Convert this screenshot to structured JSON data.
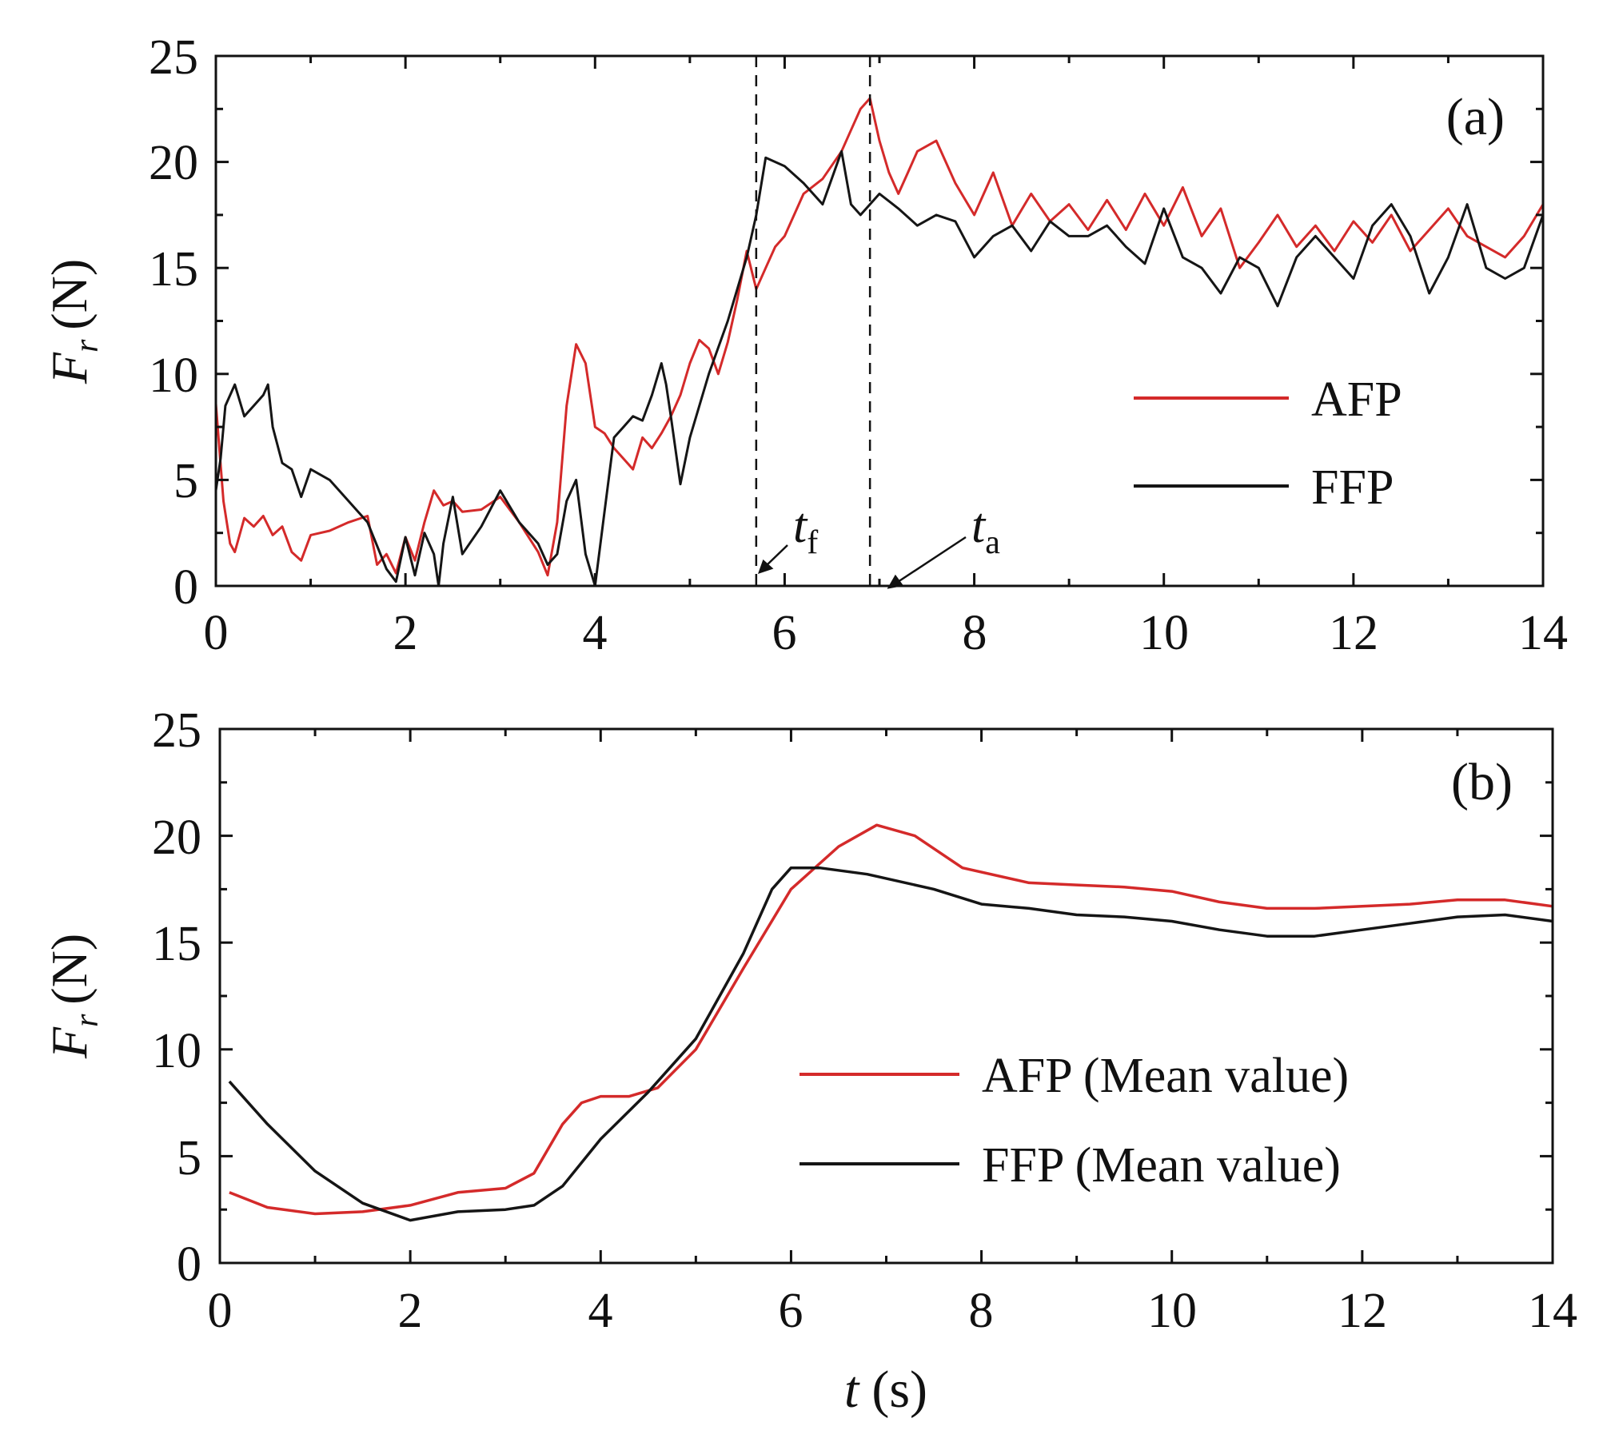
{
  "colors": {
    "afp": "#d42a2a",
    "ffp": "#151515",
    "axis": "#111111"
  },
  "chart_data": [
    {
      "type": "line",
      "panel_label": "(a)",
      "xlabel_var": "t",
      "xlabel_unit": "(s)",
      "ylabel_var": "F",
      "ylabel_sub": "r",
      "ylabel_unit": "(N)",
      "xlim": [
        0,
        14
      ],
      "ylim": [
        0,
        25
      ],
      "xticks": [
        "0",
        "2",
        "4",
        "6",
        "8",
        "10",
        "12",
        "14"
      ],
      "yticks": [
        "0",
        "5",
        "10",
        "15",
        "20",
        "25"
      ],
      "grid": false,
      "legend_position": "right",
      "series": [
        {
          "name": "AFP",
          "color_key": "afp",
          "x": [
            0,
            0.08,
            0.15,
            0.2,
            0.3,
            0.4,
            0.5,
            0.6,
            0.7,
            0.8,
            0.9,
            1.0,
            1.2,
            1.4,
            1.6,
            1.7,
            1.8,
            1.9,
            2.0,
            2.1,
            2.2,
            2.3,
            2.4,
            2.5,
            2.6,
            2.8,
            3.0,
            3.2,
            3.4,
            3.5,
            3.6,
            3.7,
            3.8,
            3.9,
            4.0,
            4.1,
            4.2,
            4.3,
            4.4,
            4.5,
            4.6,
            4.7,
            4.8,
            4.9,
            5.0,
            5.1,
            5.2,
            5.3,
            5.4,
            5.5,
            5.6,
            5.7,
            5.8,
            5.9,
            6.0,
            6.2,
            6.4,
            6.6,
            6.7,
            6.8,
            6.9,
            7.0,
            7.1,
            7.2,
            7.3,
            7.4,
            7.6,
            7.8,
            8.0,
            8.2,
            8.4,
            8.6,
            8.8,
            9.0,
            9.2,
            9.4,
            9.6,
            9.8,
            10.0,
            10.2,
            10.4,
            10.6,
            10.8,
            11.0,
            11.2,
            11.4,
            11.6,
            11.8,
            12.0,
            12.2,
            12.4,
            12.6,
            12.8,
            13.0,
            13.2,
            13.4,
            13.6,
            13.8,
            14.0
          ],
          "y": [
            8.6,
            4.0,
            2.0,
            1.6,
            3.2,
            2.8,
            3.3,
            2.4,
            2.8,
            1.6,
            1.2,
            2.4,
            2.6,
            3.0,
            3.3,
            1.0,
            1.5,
            0.6,
            2.3,
            1.2,
            3.0,
            4.5,
            3.8,
            4.0,
            3.5,
            3.6,
            4.2,
            3.0,
            1.6,
            0.5,
            3.0,
            8.5,
            11.4,
            10.5,
            7.5,
            7.2,
            6.5,
            6.0,
            5.5,
            7.0,
            6.5,
            7.2,
            8.0,
            9.0,
            10.5,
            11.6,
            11.2,
            10.0,
            11.5,
            13.5,
            15.8,
            14.0,
            15.0,
            16.0,
            16.5,
            18.5,
            19.2,
            20.5,
            21.5,
            22.5,
            23.0,
            21.0,
            19.5,
            18.5,
            19.5,
            20.5,
            21.0,
            19.0,
            17.5,
            19.5,
            17.0,
            18.5,
            17.2,
            18.0,
            16.8,
            18.2,
            16.8,
            18.5,
            17.0,
            18.8,
            16.5,
            17.8,
            15.0,
            16.2,
            17.5,
            16.0,
            17.0,
            15.8,
            17.2,
            16.2,
            17.5,
            15.8,
            16.8,
            17.8,
            16.5,
            16.0,
            15.5,
            16.5,
            18.0
          ]
        },
        {
          "name": "FFP",
          "color_key": "ffp",
          "x": [
            0,
            0.05,
            0.1,
            0.2,
            0.3,
            0.4,
            0.5,
            0.55,
            0.6,
            0.7,
            0.8,
            0.9,
            1.0,
            1.2,
            1.4,
            1.6,
            1.8,
            1.9,
            2.0,
            2.1,
            2.2,
            2.3,
            2.35,
            2.4,
            2.5,
            2.6,
            2.8,
            3.0,
            3.2,
            3.4,
            3.5,
            3.6,
            3.7,
            3.8,
            3.9,
            4.0,
            4.1,
            4.2,
            4.3,
            4.4,
            4.5,
            4.6,
            4.7,
            4.75,
            4.8,
            4.9,
            5.0,
            5.2,
            5.4,
            5.6,
            5.7,
            5.8,
            6.0,
            6.2,
            6.4,
            6.6,
            6.7,
            6.8,
            7.0,
            7.2,
            7.4,
            7.6,
            7.8,
            8.0,
            8.2,
            8.4,
            8.6,
            8.8,
            9.0,
            9.2,
            9.4,
            9.6,
            9.8,
            10.0,
            10.2,
            10.4,
            10.6,
            10.8,
            11.0,
            11.2,
            11.4,
            11.6,
            11.8,
            12.0,
            12.2,
            12.4,
            12.6,
            12.8,
            13.0,
            13.2,
            13.4,
            13.6,
            13.8,
            14.0
          ],
          "y": [
            4.5,
            6.0,
            8.5,
            9.5,
            8.0,
            8.5,
            9.0,
            9.5,
            7.5,
            5.8,
            5.5,
            4.2,
            5.5,
            5.0,
            4.0,
            3.0,
            0.8,
            0.2,
            2.3,
            0.5,
            2.5,
            1.5,
            0.0,
            2.0,
            4.2,
            1.5,
            2.8,
            4.5,
            3.0,
            2.0,
            1.0,
            1.5,
            4.0,
            5.0,
            1.5,
            0.0,
            3.5,
            7.0,
            7.5,
            8.0,
            7.8,
            9.0,
            10.5,
            9.5,
            8.0,
            4.8,
            7.0,
            10.0,
            12.5,
            15.5,
            17.5,
            20.2,
            19.8,
            19.0,
            18.0,
            20.5,
            18.0,
            17.5,
            18.5,
            17.8,
            17.0,
            17.5,
            17.2,
            15.5,
            16.5,
            17.0,
            15.8,
            17.2,
            16.5,
            16.5,
            17.0,
            16.0,
            15.2,
            17.8,
            15.5,
            15.0,
            13.8,
            15.5,
            15.0,
            13.2,
            15.5,
            16.5,
            15.5,
            14.5,
            17.0,
            18.0,
            16.5,
            13.8,
            15.5,
            18.0,
            15.0,
            14.5,
            15.0,
            17.5
          ]
        }
      ],
      "annotations": [
        {
          "label": "t",
          "sub": "f",
          "x": 5.7,
          "style": "dashed-vline"
        },
        {
          "label": "t",
          "sub": "a",
          "x": 6.9,
          "style": "dashed-vline"
        }
      ]
    },
    {
      "type": "line",
      "panel_label": "(b)",
      "xlabel_var": "t",
      "xlabel_unit": "(s)",
      "ylabel_var": "F",
      "ylabel_sub": "r",
      "ylabel_unit": "(N)",
      "xlim": [
        0,
        14
      ],
      "ylim": [
        0,
        25
      ],
      "xticks": [
        "0",
        "2",
        "4",
        "6",
        "8",
        "10",
        "12",
        "14"
      ],
      "yticks": [
        "0",
        "5",
        "10",
        "15",
        "20",
        "25"
      ],
      "grid": false,
      "legend_position": "right",
      "series": [
        {
          "name": "AFP (Mean value)",
          "color_key": "afp",
          "x": [
            0.1,
            0.5,
            1.0,
            1.5,
            2.0,
            2.5,
            3.0,
            3.3,
            3.6,
            3.8,
            4.0,
            4.3,
            4.6,
            5.0,
            5.5,
            6.0,
            6.5,
            6.9,
            7.3,
            7.8,
            8.5,
            9.0,
            9.5,
            10.0,
            10.5,
            11.0,
            11.5,
            12.0,
            12.5,
            13.0,
            13.5,
            14.0
          ],
          "y": [
            3.3,
            2.6,
            2.3,
            2.4,
            2.7,
            3.3,
            3.5,
            4.2,
            6.5,
            7.5,
            7.8,
            7.8,
            8.2,
            10.0,
            13.8,
            17.5,
            19.5,
            20.5,
            20.0,
            18.5,
            17.8,
            17.7,
            17.6,
            17.4,
            16.9,
            16.6,
            16.6,
            16.7,
            16.8,
            17.0,
            17.0,
            16.7
          ]
        },
        {
          "name": "FFP (Mean value)",
          "color_key": "ffp",
          "x": [
            0.1,
            0.5,
            1.0,
            1.5,
            2.0,
            2.5,
            3.0,
            3.3,
            3.6,
            4.0,
            4.5,
            5.0,
            5.5,
            5.8,
            6.0,
            6.3,
            6.8,
            7.5,
            8.0,
            8.5,
            9.0,
            9.5,
            10.0,
            10.5,
            11.0,
            11.5,
            12.0,
            12.5,
            13.0,
            13.5,
            14.0
          ],
          "y": [
            8.5,
            6.5,
            4.3,
            2.8,
            2.0,
            2.4,
            2.5,
            2.7,
            3.6,
            5.8,
            8.0,
            10.5,
            14.5,
            17.5,
            18.5,
            18.5,
            18.2,
            17.5,
            16.8,
            16.6,
            16.3,
            16.2,
            16.0,
            15.6,
            15.3,
            15.3,
            15.6,
            15.9,
            16.2,
            16.3,
            16.0
          ]
        }
      ],
      "annotations": []
    }
  ]
}
